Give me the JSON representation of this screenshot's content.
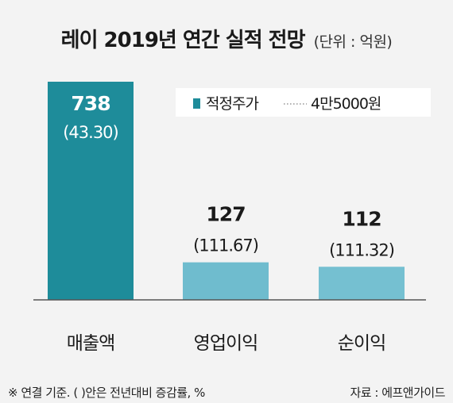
{
  "title": "레이 2019년 연간 실적 전망",
  "unit": "(단위 : 억원)",
  "legend": {
    "target_price_label": "적정주가",
    "target_price_value": "4만5000원"
  },
  "colors": {
    "bar_dark": "#1e8c9a",
    "bar_light": "#6fbcce",
    "bar_light_2": "#75c0d1",
    "legend_swatch": "#1e8c9a",
    "dotted": "#9a9a9a"
  },
  "chart_data": {
    "type": "bar",
    "categories": [
      "매출액",
      "영업이익",
      "순이익"
    ],
    "values": [
      738,
      127,
      112
    ],
    "value_labels": [
      "738",
      "127",
      "112"
    ],
    "change_labels": [
      "(43.30)",
      "(111.67)",
      "(111.32)"
    ]
  },
  "footer": {
    "note": "※ 연결 기준. (    )안은 전년대비 증감률, %",
    "source": "자료 : 에프앤가이드"
  }
}
